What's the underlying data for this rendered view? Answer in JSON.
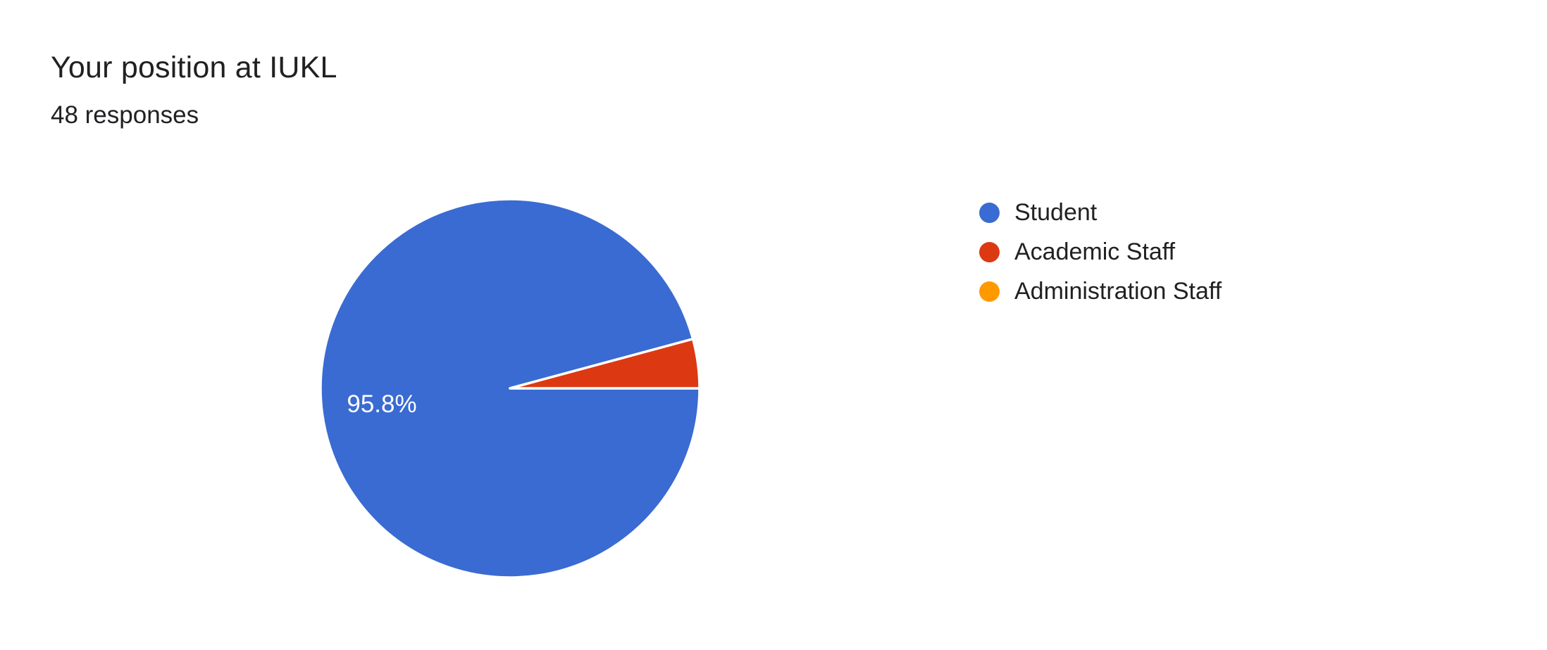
{
  "header": {
    "title": "Your position at IUKL",
    "subtitle": "48 responses"
  },
  "chart_data": {
    "type": "pie",
    "title": "Your position at IUKL",
    "subtitle": "48 responses",
    "total_responses": 48,
    "categories": [
      "Student",
      "Academic Staff",
      "Administration Staff"
    ],
    "values_percent": [
      95.8,
      4.2,
      0
    ],
    "slice_labels": [
      "95.8%",
      "",
      ""
    ],
    "colors": [
      "#3A6BD2",
      "#DC3912",
      "#FF9900"
    ],
    "slice_border_color": "#ffffff",
    "legend_position": "right",
    "start_angle_deg": 0,
    "direction": "clockwise",
    "shown_label": "95.8%"
  }
}
